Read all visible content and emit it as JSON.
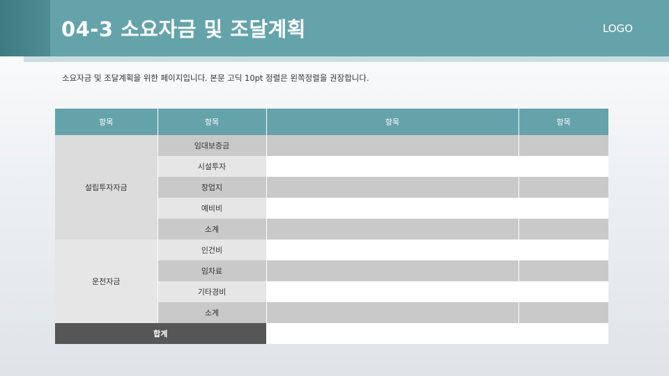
{
  "slide": {
    "title": "04-3 소요자금 및 조달계획",
    "logo": "LOGO",
    "subtitle": "소요자금 및 조달계획을 위한 페이지입니다. 본문 고딕 10pt 정렬은 왼쪽정렬을 권장합니다."
  },
  "table": {
    "headers": [
      "항목",
      "항목",
      "항목",
      "항목"
    ],
    "groups": [
      {
        "label": "설립투자자금",
        "items": [
          "임대보증금",
          "시설투자",
          "창업지",
          "예비비",
          "소계"
        ]
      },
      {
        "label": "운전자금",
        "items": [
          "인건비",
          "임차료",
          "기타경비",
          "소계"
        ]
      }
    ],
    "total_label": "합계"
  },
  "colors": {
    "header_teal": "#65a3ab",
    "header_dark_teal": "#3f7a82",
    "total_row": "#565656"
  }
}
